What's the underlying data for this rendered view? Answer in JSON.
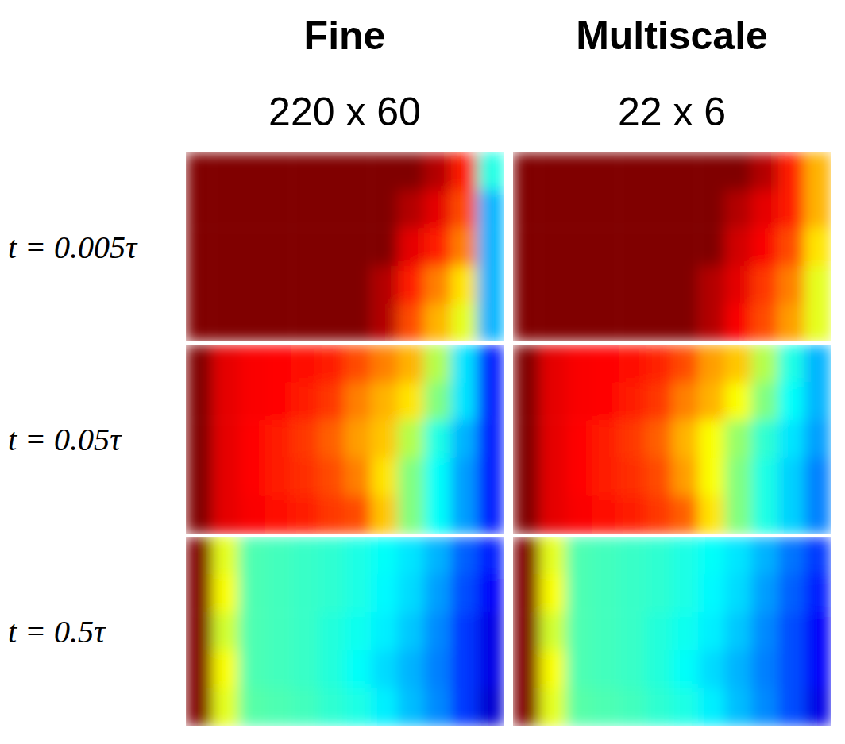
{
  "chart_data": {
    "type": "heatmap",
    "columns": [
      {
        "title": "Fine",
        "subtitle": "220 x 60"
      },
      {
        "title": "Multiscale",
        "subtitle": "22 x 6"
      }
    ],
    "rows": [
      "t = 0.005τ",
      "t = 0.05τ",
      "t = 0.5τ"
    ],
    "color_range": [
      0,
      1
    ],
    "tick_labels": false,
    "panels": [
      [
        [
          [
            1,
            1,
            1,
            1,
            1,
            1,
            1,
            1,
            1,
            0.95,
            0.85,
            0.4
          ],
          [
            1,
            1,
            1,
            1,
            1,
            1,
            1,
            1,
            0.95,
            0.9,
            0.8,
            0.3
          ],
          [
            1,
            1,
            1,
            1,
            1,
            1,
            1,
            1,
            0.9,
            0.85,
            0.75,
            0.3
          ],
          [
            1,
            1,
            1,
            1,
            1,
            1,
            1,
            0.95,
            0.85,
            0.75,
            0.65,
            0.3
          ],
          [
            1,
            1,
            1,
            1,
            1,
            1,
            1,
            0.95,
            0.8,
            0.7,
            0.6,
            0.3
          ]
        ],
        [
          [
            1,
            1,
            1,
            1,
            1,
            1,
            1,
            1,
            1,
            0.95,
            0.85,
            0.7
          ],
          [
            1,
            1,
            1,
            1,
            1,
            1,
            1,
            1,
            0.95,
            0.9,
            0.85,
            0.7
          ],
          [
            1,
            1,
            1,
            1,
            1,
            1,
            1,
            1,
            0.92,
            0.88,
            0.8,
            0.65
          ],
          [
            1,
            1,
            1,
            1,
            1,
            1,
            1,
            0.95,
            0.9,
            0.82,
            0.75,
            0.6
          ],
          [
            1,
            1,
            1,
            1,
            1,
            1,
            1,
            0.95,
            0.88,
            0.8,
            0.72,
            0.6
          ]
        ]
      ],
      [
        [
          [
            1,
            0.9,
            0.88,
            0.87,
            0.86,
            0.85,
            0.8,
            0.75,
            0.7,
            0.55,
            0.35,
            0.15
          ],
          [
            1,
            0.9,
            0.88,
            0.87,
            0.85,
            0.82,
            0.75,
            0.7,
            0.65,
            0.5,
            0.35,
            0.15
          ],
          [
            1,
            0.9,
            0.87,
            0.85,
            0.82,
            0.78,
            0.72,
            0.68,
            0.55,
            0.4,
            0.3,
            0.15
          ],
          [
            1,
            0.9,
            0.87,
            0.85,
            0.83,
            0.8,
            0.75,
            0.65,
            0.5,
            0.38,
            0.28,
            0.15
          ],
          [
            1,
            0.9,
            0.88,
            0.86,
            0.85,
            0.82,
            0.8,
            0.68,
            0.5,
            0.38,
            0.28,
            0.15
          ]
        ],
        [
          [
            1,
            0.9,
            0.88,
            0.87,
            0.86,
            0.84,
            0.8,
            0.72,
            0.68,
            0.55,
            0.4,
            0.3
          ],
          [
            1,
            0.9,
            0.88,
            0.87,
            0.85,
            0.82,
            0.75,
            0.7,
            0.62,
            0.5,
            0.38,
            0.3
          ],
          [
            1,
            0.9,
            0.87,
            0.85,
            0.82,
            0.78,
            0.7,
            0.62,
            0.52,
            0.42,
            0.35,
            0.28
          ],
          [
            1,
            0.9,
            0.87,
            0.85,
            0.83,
            0.8,
            0.72,
            0.62,
            0.5,
            0.4,
            0.33,
            0.25
          ],
          [
            1,
            0.9,
            0.88,
            0.86,
            0.85,
            0.82,
            0.78,
            0.65,
            0.5,
            0.4,
            0.33,
            0.25
          ]
        ]
      ],
      [
        [
          [
            1,
            0.6,
            0.45,
            0.44,
            0.43,
            0.42,
            0.4,
            0.38,
            0.35,
            0.3,
            0.22,
            0.15
          ],
          [
            1,
            0.62,
            0.45,
            0.44,
            0.43,
            0.42,
            0.4,
            0.37,
            0.34,
            0.28,
            0.2,
            0.12
          ],
          [
            1,
            0.58,
            0.45,
            0.44,
            0.43,
            0.41,
            0.39,
            0.36,
            0.32,
            0.26,
            0.18,
            0.1
          ],
          [
            1,
            0.62,
            0.45,
            0.44,
            0.43,
            0.41,
            0.38,
            0.34,
            0.3,
            0.25,
            0.18,
            0.1
          ],
          [
            1,
            0.6,
            0.46,
            0.45,
            0.44,
            0.42,
            0.4,
            0.36,
            0.31,
            0.26,
            0.18,
            0.08
          ]
        ],
        [
          [
            1,
            0.6,
            0.45,
            0.44,
            0.43,
            0.42,
            0.4,
            0.38,
            0.35,
            0.3,
            0.24,
            0.18
          ],
          [
            1,
            0.62,
            0.45,
            0.44,
            0.43,
            0.42,
            0.4,
            0.37,
            0.34,
            0.28,
            0.22,
            0.15
          ],
          [
            1,
            0.58,
            0.45,
            0.44,
            0.43,
            0.41,
            0.39,
            0.36,
            0.32,
            0.26,
            0.2,
            0.12
          ],
          [
            1,
            0.62,
            0.45,
            0.44,
            0.43,
            0.41,
            0.38,
            0.34,
            0.3,
            0.25,
            0.2,
            0.12
          ],
          [
            1,
            0.6,
            0.46,
            0.45,
            0.44,
            0.42,
            0.4,
            0.36,
            0.31,
            0.26,
            0.2,
            0.1
          ]
        ]
      ]
    ]
  }
}
